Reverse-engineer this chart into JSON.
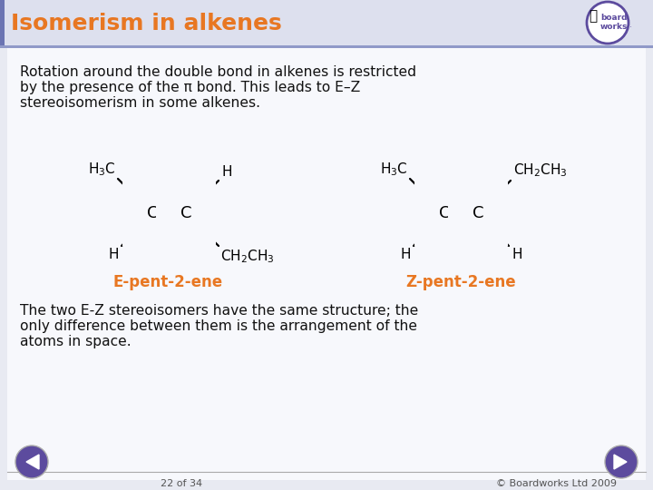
{
  "title": "Isomerism in alkenes",
  "title_color": "#E87722",
  "title_bg_color": "#dde0ee",
  "title_stripe_color": "#6b74b2",
  "bg_color": "#e8eaf2",
  "body_bg_color": "#f7f8fc",
  "text_color": "#111111",
  "orange_color": "#E87722",
  "para1_line1": "Rotation around the double bond in alkenes is restricted",
  "para1_line2": "by the presence of the π bond. This leads to E–Z",
  "para1_line3": "stereoisomerism in some alkenes.",
  "label_e": "E-pent-2-ene",
  "label_z": "Z-pent-2-ene",
  "para2_line1": "The two E-Z stereoisomers have the same structure; the",
  "para2_line2": "only difference between them is the arrangement of the",
  "para2_line3": "atoms in space.",
  "footer_left": "22 of 34",
  "footer_right": "© Boardworks Ltd 2009",
  "nav_color": "#5c4b9e",
  "board_works_color": "#5c4b9e"
}
